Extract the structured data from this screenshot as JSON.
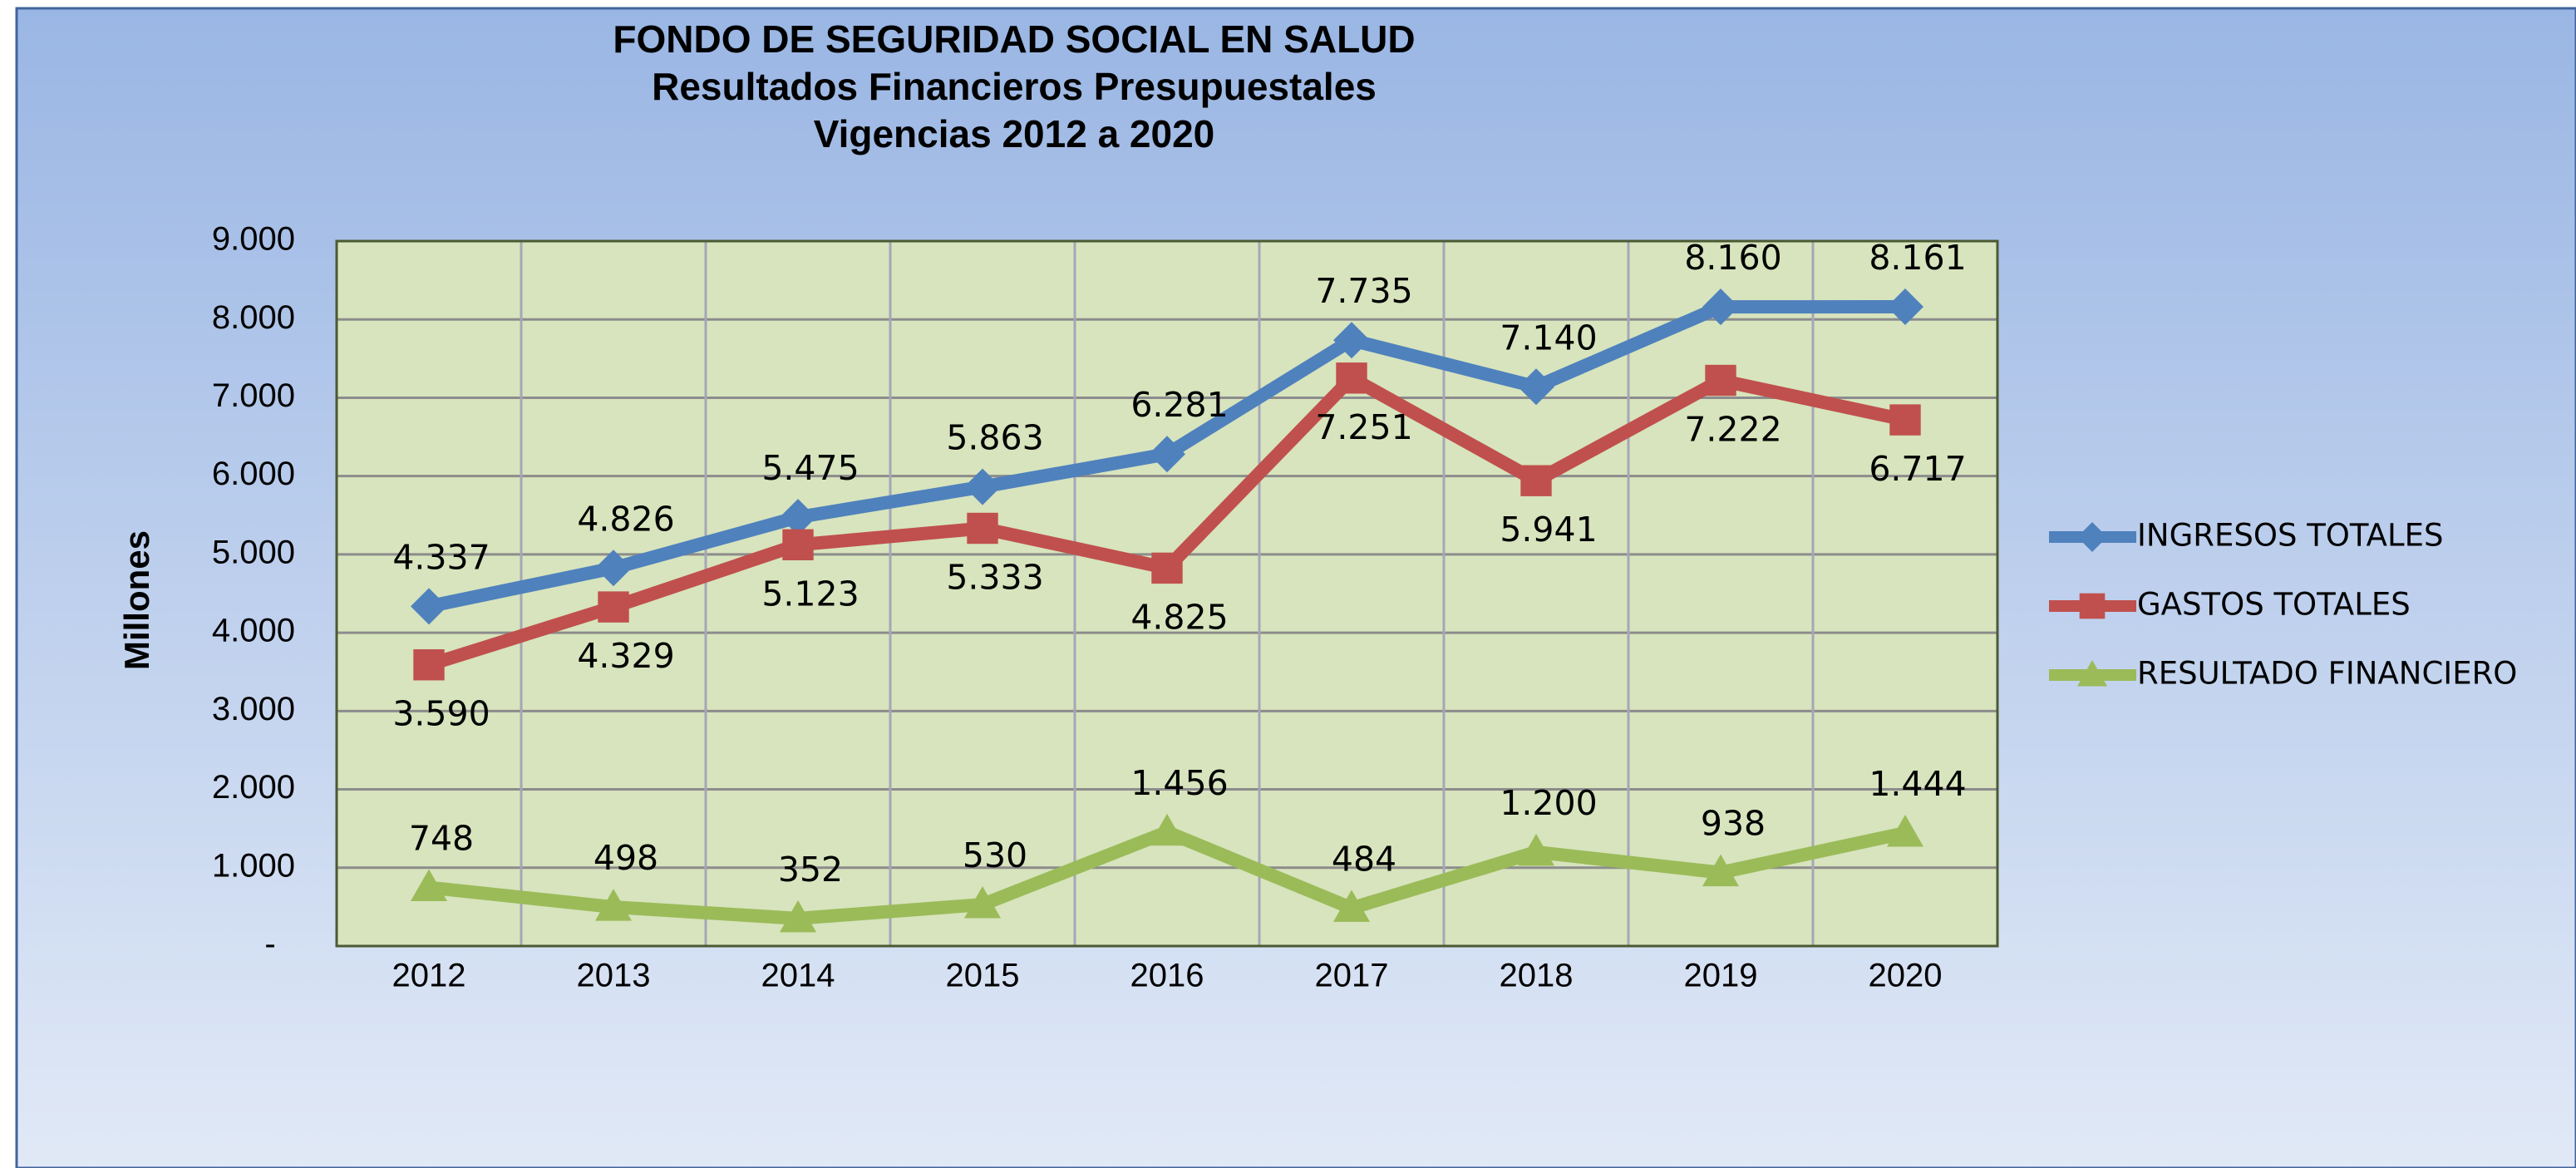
{
  "chart_data": {
    "type": "line",
    "title": [
      "FONDO DE SEGURIDAD SOCIAL EN SALUD",
      "Resultados Financieros Presupuestales",
      "Vigencias 2012 a 2020"
    ],
    "y_label": "Millones",
    "categories": [
      "2012",
      "2013",
      "2014",
      "2015",
      "2016",
      "2017",
      "2018",
      "2019",
      "2020"
    ],
    "series": [
      {
        "name": "INGRESOS TOTALES",
        "color": "#4f81bd",
        "marker": "diamond",
        "label_position": "above",
        "values": [
          4337,
          4826,
          5475,
          5863,
          6281,
          7735,
          7140,
          8160,
          8161
        ],
        "value_labels": [
          "4.337",
          "4.826",
          "5.475",
          "5.863",
          "6.281",
          "7.735",
          "7.140",
          "8.160",
          "8.161"
        ]
      },
      {
        "name": "GASTOS TOTALES",
        "color": "#c0504d",
        "marker": "square",
        "label_position": "below",
        "values": [
          3590,
          4329,
          5123,
          5333,
          4825,
          7251,
          5941,
          7222,
          6717
        ],
        "value_labels": [
          "3.590",
          "4.329",
          "5.123",
          "5.333",
          "4.825",
          "7.251",
          "5.941",
          "7.222",
          "6.717"
        ]
      },
      {
        "name": "RESULTADO FINANCIERO",
        "color": "#9bbb59",
        "marker": "triangle",
        "label_position": "above",
        "values": [
          748,
          498,
          352,
          530,
          1456,
          484,
          1200,
          938,
          1444
        ],
        "value_labels": [
          "748",
          "498",
          "352",
          "530",
          "1.456",
          "484",
          "1.200",
          "938",
          "1.444"
        ]
      }
    ],
    "ylim": [
      0,
      9000
    ],
    "yticks": [
      {
        "value": 0,
        "label": "-"
      },
      {
        "value": 1000,
        "label": "1.000"
      },
      {
        "value": 2000,
        "label": "2.000"
      },
      {
        "value": 3000,
        "label": "3.000"
      },
      {
        "value": 4000,
        "label": "4.000"
      },
      {
        "value": 5000,
        "label": "5.000"
      },
      {
        "value": 6000,
        "label": "6.000"
      },
      {
        "value": 7000,
        "label": "7.000"
      },
      {
        "value": 8000,
        "label": "8.000"
      },
      {
        "value": 9000,
        "label": "9.000"
      }
    ],
    "grid": true,
    "legend": "right"
  }
}
